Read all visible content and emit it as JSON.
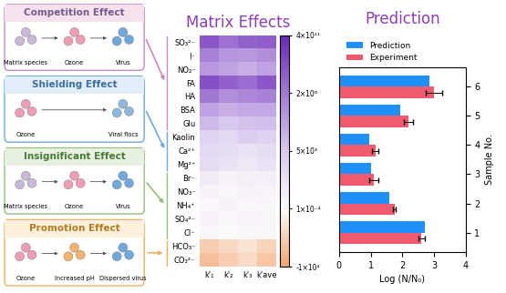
{
  "chart_data": [
    {
      "type": "heatmap",
      "title": "Matrix Effects",
      "rows": [
        "SO₃²⁻",
        "I⁻",
        "NO₂⁻",
        "FA",
        "HA",
        "BSA",
        "Glu",
        "Kaolin",
        "Ca²⁺",
        "Mg²⁺",
        "Br⁻",
        "NO₃⁻",
        "NH₄⁺",
        "SO₄²⁻",
        "Cl⁻",
        "HCO₃⁻",
        "CO₃²⁻"
      ],
      "columns": [
        "k'₁",
        "k'₂",
        "k'₃",
        "k'ave"
      ],
      "cells": [
        [
          160000000000,
          32000000000,
          112000000000,
          128000000000
        ],
        [
          1760000,
          1280000,
          1200000,
          1440000
        ],
        [
          1200000,
          960000,
          640000,
          960000
        ],
        [
          200000000000,
          115000000000,
          48000000000,
          160000000000
        ],
        [
          2000000,
          1440000,
          1600000,
          1760000
        ],
        [
          960000,
          640000,
          800000,
          800000
        ],
        [
          400000,
          5000,
          165000,
          240000
        ],
        [
          4000,
          3400,
          4600,
          4000
        ],
        [
          3400,
          3000,
          2600,
          3000
        ],
        [
          3000,
          2600,
          2000,
          2600
        ],
        [
          1600,
          1000,
          1400,
          1400
        ],
        [
          1000,
          600,
          1000,
          800
        ],
        [
          400,
          1000,
          600,
          600
        ],
        [
          1000,
          400,
          800,
          600
        ],
        [
          600,
          200,
          400,
          400
        ],
        [
          -5200,
          -4000,
          -2800,
          -4400
        ],
        [
          -6800,
          -5200,
          -3600,
          -6000
        ]
      ],
      "colorbar": {
        "range": [
          -10000,
          400000000000
        ],
        "ticks": [
          {
            "value": 400000000000,
            "label": "4×10¹¹"
          },
          {
            "value": 2000000,
            "label": "2×10⁶"
          },
          {
            "value": 5000,
            "label": "5×10³"
          },
          {
            "value": 0.0001,
            "label": "1×10⁻⁴"
          },
          {
            "value": -10000,
            "label": "-1×10⁴"
          }
        ]
      }
    },
    {
      "type": "bar",
      "title": "Prediction",
      "orientation": "horizontal",
      "categories": [
        "1",
        "2",
        "3",
        "4",
        "5",
        "6"
      ],
      "series": [
        {
          "name": "Prediction",
          "color": "#1e90ff",
          "values": [
            2.7,
            1.6,
            1.0,
            0.95,
            1.95,
            2.85
          ]
        },
        {
          "name": "Experiment",
          "color": "#f05a6e",
          "values": [
            2.6,
            1.75,
            1.1,
            1.15,
            2.2,
            3.0
          ],
          "errors": [
            0.1,
            0.05,
            0.15,
            0.1,
            0.15,
            0.25
          ]
        }
      ],
      "xlim": [
        0,
        4
      ],
      "xticks": [
        0,
        1,
        2,
        3,
        4
      ],
      "xlabel": "Log (N/N₀)",
      "ylabel": "Sample No.",
      "legend": "upper left"
    }
  ],
  "diagram": {
    "panels": [
      {
        "title": "Competition Effect",
        "labels": [
          "Matrix species",
          "Ozone",
          "Virus"
        ]
      },
      {
        "title": "Shielding Effect",
        "labels": [
          "Ozone",
          "Viral flocs"
        ]
      },
      {
        "title": "Insignificant Effect",
        "labels": [
          "Matrix species",
          "Ozone",
          "Virus"
        ]
      },
      {
        "title": "Promotion Effect",
        "labels": [
          "Ozone",
          "Increased pH",
          "Dispersed virus"
        ]
      }
    ]
  }
}
